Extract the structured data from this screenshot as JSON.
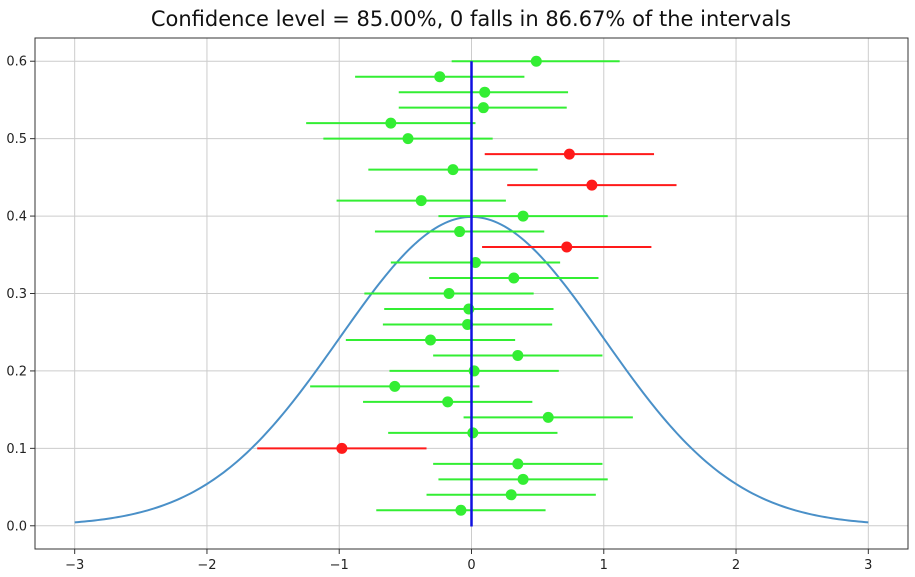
{
  "chart_data": {
    "type": "scatter",
    "title": "Confidence level = 85.00%, 0 falls in 86.67% of the intervals",
    "xlabel": "",
    "ylabel": "",
    "xlim": [
      -3.3,
      3.3
    ],
    "ylim": [
      -0.03,
      0.63
    ],
    "xticks": [
      -3,
      -2,
      -1,
      0,
      1,
      2,
      3
    ],
    "xtick_labels": [
      "−3",
      "−2",
      "−1",
      "0",
      "1",
      "2",
      "3"
    ],
    "yticks": [
      0.0,
      0.1,
      0.2,
      0.3,
      0.4,
      0.5,
      0.6
    ],
    "ytick_labels": [
      "0.0",
      "0.1",
      "0.2",
      "0.3",
      "0.4",
      "0.5",
      "0.6"
    ],
    "grid": true,
    "colors": {
      "curve": "#4a90c8",
      "zero_line": "#1010e0",
      "covers_zero": "#33ee33",
      "misses_zero": "#ff1a1a",
      "grid": "#cccccc",
      "axis": "#333333"
    },
    "normal_curve": {
      "mean": 0,
      "sd": 1,
      "x_range": [
        -3,
        3
      ]
    },
    "zero_line": {
      "x": 0,
      "y_range": [
        -0.001,
        0.6
      ]
    },
    "intervals": [
      {
        "y": 0.6,
        "center": 0.49,
        "low": -0.15,
        "high": 1.12,
        "covers_zero": true
      },
      {
        "y": 0.58,
        "center": -0.24,
        "low": -0.88,
        "high": 0.4,
        "covers_zero": true
      },
      {
        "y": 0.56,
        "center": 0.1,
        "low": -0.55,
        "high": 0.73,
        "covers_zero": true
      },
      {
        "y": 0.54,
        "center": 0.09,
        "low": -0.55,
        "high": 0.72,
        "covers_zero": true
      },
      {
        "y": 0.52,
        "center": -0.61,
        "low": -1.25,
        "high": 0.03,
        "covers_zero": true
      },
      {
        "y": 0.5,
        "center": -0.48,
        "low": -1.12,
        "high": 0.16,
        "covers_zero": true
      },
      {
        "y": 0.48,
        "center": 0.74,
        "low": 0.1,
        "high": 1.38,
        "covers_zero": false
      },
      {
        "y": 0.46,
        "center": -0.14,
        "low": -0.78,
        "high": 0.5,
        "covers_zero": true
      },
      {
        "y": 0.44,
        "center": 0.91,
        "low": 0.27,
        "high": 1.55,
        "covers_zero": false
      },
      {
        "y": 0.42,
        "center": -0.38,
        "low": -1.02,
        "high": 0.26,
        "covers_zero": true
      },
      {
        "y": 0.4,
        "center": 0.39,
        "low": -0.25,
        "high": 1.03,
        "covers_zero": true
      },
      {
        "y": 0.38,
        "center": -0.09,
        "low": -0.73,
        "high": 0.55,
        "covers_zero": true
      },
      {
        "y": 0.36,
        "center": 0.72,
        "low": 0.08,
        "high": 1.36,
        "covers_zero": false
      },
      {
        "y": 0.34,
        "center": 0.03,
        "low": -0.61,
        "high": 0.67,
        "covers_zero": true
      },
      {
        "y": 0.32,
        "center": 0.32,
        "low": -0.32,
        "high": 0.96,
        "covers_zero": true
      },
      {
        "y": 0.3,
        "center": -0.17,
        "low": -0.81,
        "high": 0.47,
        "covers_zero": true
      },
      {
        "y": 0.28,
        "center": -0.02,
        "low": -0.66,
        "high": 0.62,
        "covers_zero": true
      },
      {
        "y": 0.26,
        "center": -0.03,
        "low": -0.67,
        "high": 0.61,
        "covers_zero": true
      },
      {
        "y": 0.24,
        "center": -0.31,
        "low": -0.95,
        "high": 0.33,
        "covers_zero": true
      },
      {
        "y": 0.22,
        "center": 0.35,
        "low": -0.29,
        "high": 0.99,
        "covers_zero": true
      },
      {
        "y": 0.2,
        "center": 0.02,
        "low": -0.62,
        "high": 0.66,
        "covers_zero": true
      },
      {
        "y": 0.18,
        "center": -0.58,
        "low": -1.22,
        "high": 0.06,
        "covers_zero": true
      },
      {
        "y": 0.16,
        "center": -0.18,
        "low": -0.82,
        "high": 0.46,
        "covers_zero": true
      },
      {
        "y": 0.14,
        "center": 0.58,
        "low": -0.06,
        "high": 1.22,
        "covers_zero": true
      },
      {
        "y": 0.12,
        "center": 0.01,
        "low": -0.63,
        "high": 0.65,
        "covers_zero": true
      },
      {
        "y": 0.1,
        "center": -0.98,
        "low": -1.62,
        "high": -0.34,
        "covers_zero": false
      },
      {
        "y": 0.08,
        "center": 0.35,
        "low": -0.29,
        "high": 0.99,
        "covers_zero": true
      },
      {
        "y": 0.06,
        "center": 0.39,
        "low": -0.25,
        "high": 1.03,
        "covers_zero": true
      },
      {
        "y": 0.04,
        "center": 0.3,
        "low": -0.34,
        "high": 0.94,
        "covers_zero": true
      },
      {
        "y": 0.02,
        "center": -0.08,
        "low": -0.72,
        "high": 0.56,
        "covers_zero": true
      }
    ]
  }
}
